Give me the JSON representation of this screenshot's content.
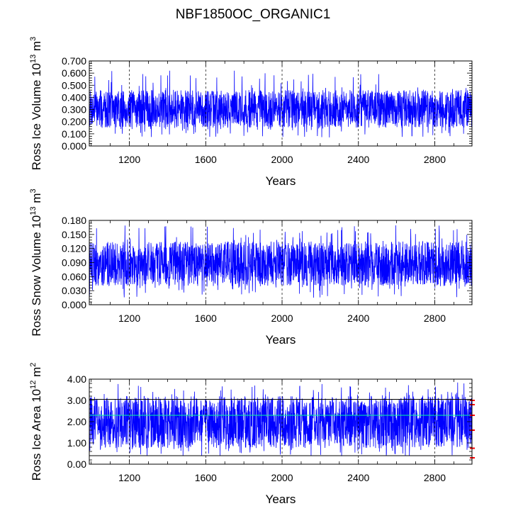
{
  "figure": {
    "title": "NBF1850OC_ORGANIC1"
  },
  "chart_data": [
    {
      "type": "line",
      "title": "NBF1850OC_ORGANIC1",
      "xlabel": "Years",
      "ylabel_parts": {
        "base": "Ross Ice Volume 10",
        "exp1": "13",
        "mid": " m",
        "exp2": "3"
      },
      "xlim": [
        990,
        2995
      ],
      "ylim": [
        0.0,
        0.7
      ],
      "x_ticks": [
        1200,
        1600,
        2000,
        2400,
        2800
      ],
      "x_tick_labels": [
        "1200",
        "1600",
        "2000",
        "2400",
        "2800"
      ],
      "y_ticks": [
        0.0,
        0.1,
        0.2,
        0.3,
        0.4,
        0.5,
        0.6,
        0.7
      ],
      "y_tick_labels": [
        "0.000",
        "0.100",
        "0.200",
        "0.300",
        "0.400",
        "0.500",
        "0.600",
        "0.700"
      ],
      "x_minor_step": 100,
      "y_minor_step": 0.02,
      "gridlines_x": [
        1200,
        1600,
        2000,
        2400,
        2800
      ],
      "series": [
        {
          "name": "Ross Ice Volume",
          "color": "#0000ff",
          "x_start": 990,
          "x_end": 2995,
          "mean": 0.3,
          "typical_range": [
            0.15,
            0.46
          ],
          "min": 0.07,
          "max": 0.62,
          "seed": 7
        }
      ],
      "reference_lines": []
    },
    {
      "type": "line",
      "xlabel": "Years",
      "ylabel_parts": {
        "base": "Ross Snow Volume 10",
        "exp1": "13",
        "mid": " m",
        "exp2": "3"
      },
      "xlim": [
        990,
        2995
      ],
      "ylim": [
        0.0,
        0.18
      ],
      "x_ticks": [
        1200,
        1600,
        2000,
        2400,
        2800
      ],
      "x_tick_labels": [
        "1200",
        "1600",
        "2000",
        "2400",
        "2800"
      ],
      "y_ticks": [
        0.0,
        0.03,
        0.06,
        0.09,
        0.12,
        0.15,
        0.18
      ],
      "y_tick_labels": [
        "0.000",
        "0.030",
        "0.060",
        "0.090",
        "0.120",
        "0.150",
        "0.180"
      ],
      "x_minor_step": 100,
      "y_minor_step": 0.006,
      "gridlines_x": [
        1200,
        1600,
        2000,
        2400,
        2800
      ],
      "series": [
        {
          "name": "Ross Snow Volume",
          "color": "#0000ff",
          "x_start": 990,
          "x_end": 2995,
          "mean": 0.085,
          "typical_range": [
            0.04,
            0.135
          ],
          "min": 0.015,
          "max": 0.17,
          "seed": 19
        }
      ],
      "reference_lines": []
    },
    {
      "type": "line",
      "xlabel": "Years",
      "ylabel_parts": {
        "base": "Ross Ice Area 10",
        "exp1": "12",
        "mid": " m",
        "exp2": "2"
      },
      "xlim": [
        990,
        2995
      ],
      "ylim": [
        0.0,
        4.0
      ],
      "x_ticks": [
        1200,
        1600,
        2000,
        2400,
        2800
      ],
      "x_tick_labels": [
        "1200",
        "1600",
        "2000",
        "2400",
        "2800"
      ],
      "y_ticks": [
        0.0,
        1.0,
        2.0,
        3.0,
        4.0
      ],
      "y_tick_labels": [
        "0.00",
        "1.00",
        "2.00",
        "3.00",
        "4.00"
      ],
      "x_minor_step": 100,
      "y_minor_step": 0.2,
      "gridlines_x": [
        1200,
        1600,
        2000,
        2400,
        2800
      ],
      "series": [
        {
          "name": "Ross Ice Area",
          "color": "#0000ff",
          "x_start": 990,
          "x_end": 2995,
          "mean": 2.0,
          "typical_range": [
            0.75,
            3.2
          ],
          "min": 0.35,
          "max": 3.85,
          "seed": 31
        }
      ],
      "reference_lines": [
        {
          "value": 3.05,
          "color": "#000000"
        },
        {
          "value": 2.3,
          "color": "#00ff99"
        },
        {
          "value": 0.4,
          "color": "#000000"
        }
      ],
      "end_markers": {
        "color": "#ff0000",
        "values": [
          3.0,
          2.8,
          2.3,
          1.6,
          0.75,
          0.3
        ]
      }
    }
  ]
}
